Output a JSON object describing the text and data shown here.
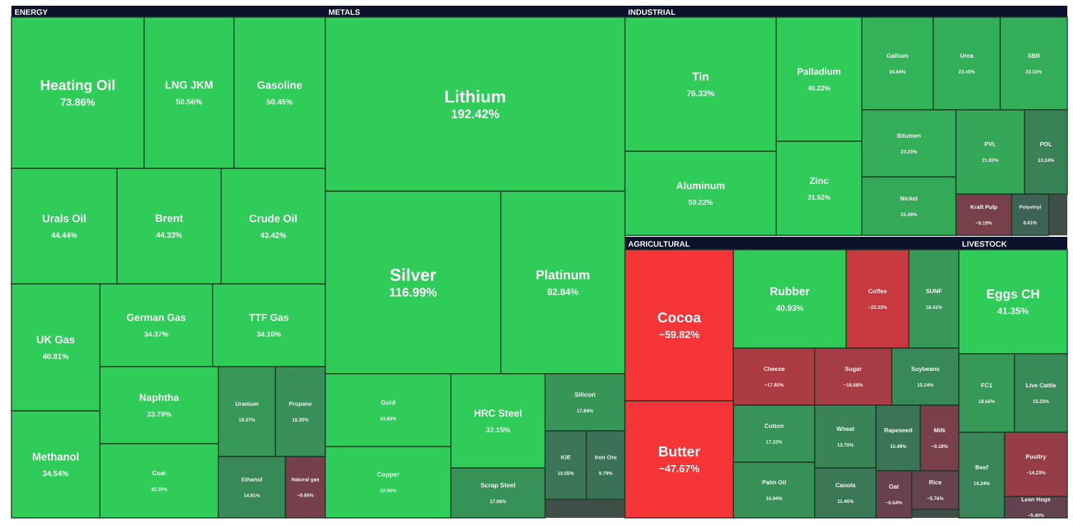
{
  "chart_data": {
    "type": "other",
    "annotations": [
      "ENERGY",
      "METALS",
      "INDUSTRIAL",
      "AGRICULTURAL",
      "LIVESTOCK"
    ],
    "categories": [
      "Heating Oil",
      "LNG JKM",
      "Gasoline",
      "Urals Oil",
      "Brent",
      "Crude Oil",
      "UK Gas",
      "Methanol",
      "German Gas",
      "TTF Gas",
      "Naphtha",
      "Coal",
      "Uranium",
      "Propane",
      "Ethanol",
      "Natural gas",
      "Lithium",
      "Silver",
      "Platinum",
      "Gold",
      "Copper",
      "HRC Steel",
      "Scrap Steel",
      "Silicon",
      "IOE",
      "Iron Ore",
      "Tin",
      "Aluminum",
      "Palladium",
      "Zinc",
      "Gallium",
      "Urea",
      "SBR",
      "Bitumen",
      "Nickel",
      "PVL",
      "POL",
      "Kraft Pulp",
      "Polyvinyl",
      "Cocoa",
      "Butter",
      "Rubber",
      "Coffee",
      "SUNF",
      "Cheese",
      "Sugar",
      "Soybeans",
      "Cotton",
      "Palm Oil",
      "Wheat",
      "Canola",
      "Rapeseed",
      "Milk",
      "Oat",
      "Rice",
      "Eggs CH",
      "FC1",
      "Live Cattle",
      "Beef",
      "Poultry",
      "Lean Hogs"
    ],
    "values": [
      73.86,
      50.56,
      50.45,
      44.44,
      44.33,
      43.42,
      40.81,
      34.54,
      34.37,
      34.1,
      33.79,
      32.38,
      18.37,
      16.35,
      14.81,
      -8.66,
      192.42,
      116.99,
      82.84,
      33.99,
      32.95,
      32.15,
      17.06,
      17.84,
      10.55,
      9.79,
      76.33,
      50.22,
      40.22,
      31.52,
      24.64,
      23.45,
      23.33,
      23.23,
      22.49,
      21.82,
      13.24,
      -9.19,
      6.61,
      -59.82,
      -47.67,
      40.93,
      -22.33,
      18.41,
      -17.8,
      -16.68,
      15.14,
      17.32,
      16.94,
      13.7,
      11.46,
      10.48,
      -9.18,
      -6.64,
      -5.76,
      41.35,
      18.66,
      15.23,
      14.24,
      -14.23,
      -5.4
    ],
    "value_labels": [
      "73.86%",
      "50.56%",
      "50.45%",
      "44.44%",
      "44.33%",
      "43.42%",
      "40.81%",
      "34.54%",
      "34.37%",
      "34.10%",
      "33.79%",
      "32.38%",
      "18.37%",
      "16.35%",
      "14.81%",
      "−8.66%",
      "192.42%",
      "116.99%",
      "82.84%",
      "33.99%",
      "32.95%",
      "32.15%",
      "17.06%",
      "17.84%",
      "10.55%",
      "9.79%",
      "76.33%",
      "50.22%",
      "40.22%",
      "31.52%",
      "24.64%",
      "23.45%",
      "23.33%",
      "23.23%",
      "22.49%",
      "21.82%",
      "13.24%",
      "−9.19%",
      "6.61%",
      "−59.82%",
      "−47.67%",
      "40.93%",
      "−22.33%",
      "18.41%",
      "−17.80%",
      "−16.68%",
      "15.14%",
      "17.32%",
      "16.94%",
      "13.70%",
      "11.46%",
      "10.48%",
      "−9.18%",
      "−6.64%",
      "−5.76%",
      "41.35%",
      "18.66%",
      "15.23%",
      "14.24%",
      "−14.23%",
      "−5.40%"
    ],
    "data_labels": true
  }
}
